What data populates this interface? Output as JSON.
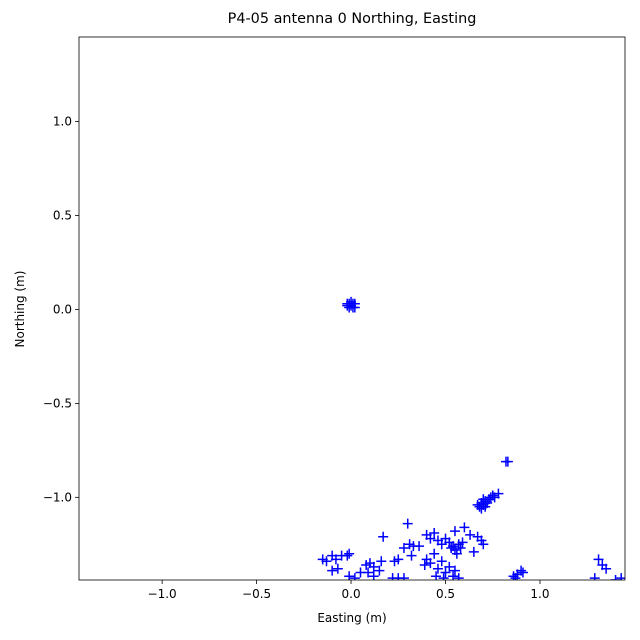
{
  "chart_data": {
    "type": "scatter",
    "title": "P4-05 antenna 0 Northing, Easting",
    "xlabel": "Easting (m)",
    "ylabel": "Northing (m)",
    "color": "#0000ff",
    "marker": "+",
    "xlim": [
      -1.44,
      1.45
    ],
    "ylim": [
      -1.44,
      1.45
    ],
    "xticks": [
      {
        "value": -1.0,
        "label": "−1.0"
      },
      {
        "value": -0.5,
        "label": "−0.5"
      },
      {
        "value": 0.0,
        "label": "0.0"
      },
      {
        "value": 0.5,
        "label": "0.5"
      },
      {
        "value": 1.0,
        "label": "1.0"
      }
    ],
    "yticks": [
      {
        "value": -1.0,
        "label": "−1.0"
      },
      {
        "value": -0.5,
        "label": "−0.5"
      },
      {
        "value": 0.0,
        "label": "0.0"
      },
      {
        "value": 0.5,
        "label": "0.5"
      },
      {
        "value": 1.0,
        "label": "1.0"
      }
    ],
    "x": [
      -0.01,
      0.0,
      0.01,
      -0.02,
      0.02,
      0.0,
      -0.01,
      0.01,
      0.02,
      -0.02,
      0.67,
      0.68,
      0.69,
      0.7,
      0.71,
      0.72,
      0.73,
      0.74,
      0.75,
      0.76,
      0.78,
      0.69,
      0.71,
      0.7,
      0.82,
      0.83,
      0.3,
      0.17,
      0.31,
      0.33,
      0.28,
      0.25,
      0.23,
      0.32,
      0.4,
      0.42,
      0.44,
      0.46,
      0.48,
      0.5,
      0.52,
      0.54,
      0.55,
      0.56,
      0.53,
      0.57,
      0.58,
      0.59,
      0.55,
      0.6,
      0.65,
      0.67,
      0.69,
      0.7,
      0.63,
      0.4,
      0.42,
      0.44,
      0.46,
      0.48,
      0.5,
      0.52,
      0.54,
      0.55,
      0.57,
      0.45,
      0.49,
      0.39,
      0.36,
      -0.15,
      -0.13,
      -0.1,
      -0.08,
      -0.05,
      -0.02,
      -0.01,
      -0.1,
      -0.07,
      -0.01,
      0.02,
      0.05,
      0.08,
      0.1,
      0.12,
      0.09,
      0.12,
      0.15,
      0.16,
      0.22,
      0.25,
      0.28,
      0.86,
      0.88,
      0.9,
      0.91,
      0.87,
      1.31,
      1.33,
      1.35,
      1.29,
      1.4,
      1.43
    ],
    "values": [
      0.03,
      0.02,
      0.01,
      0.02,
      0.03,
      0.04,
      0.01,
      0.03,
      0.01,
      0.03,
      -1.04,
      -1.05,
      -1.03,
      -1.04,
      -1.02,
      -1.03,
      -1.01,
      -1.0,
      -0.99,
      -1.0,
      -0.98,
      -1.06,
      -1.05,
      -1.01,
      -0.81,
      -0.81,
      -1.14,
      -1.21,
      -1.25,
      -1.26,
      -1.27,
      -1.33,
      -1.34,
      -1.31,
      -1.2,
      -1.22,
      -1.19,
      -1.23,
      -1.25,
      -1.22,
      -1.24,
      -1.26,
      -1.28,
      -1.3,
      -1.27,
      -1.25,
      -1.27,
      -1.24,
      -1.18,
      -1.16,
      -1.29,
      -1.21,
      -1.23,
      -1.25,
      -1.2,
      -1.33,
      -1.35,
      -1.3,
      -1.38,
      -1.34,
      -1.4,
      -1.37,
      -1.42,
      -1.39,
      -1.43,
      -1.42,
      -1.43,
      -1.36,
      -1.26,
      -1.33,
      -1.34,
      -1.31,
      -1.33,
      -1.31,
      -1.31,
      -1.3,
      -1.39,
      -1.38,
      -1.42,
      -1.43,
      -1.4,
      -1.36,
      -1.35,
      -1.37,
      -1.4,
      -1.42,
      -1.39,
      -1.34,
      -1.43,
      -1.43,
      -1.43,
      -1.42,
      -1.41,
      -1.39,
      -1.4,
      -1.43,
      -1.33,
      -1.36,
      -1.38,
      -1.43,
      -1.44,
      -1.43
    ]
  }
}
